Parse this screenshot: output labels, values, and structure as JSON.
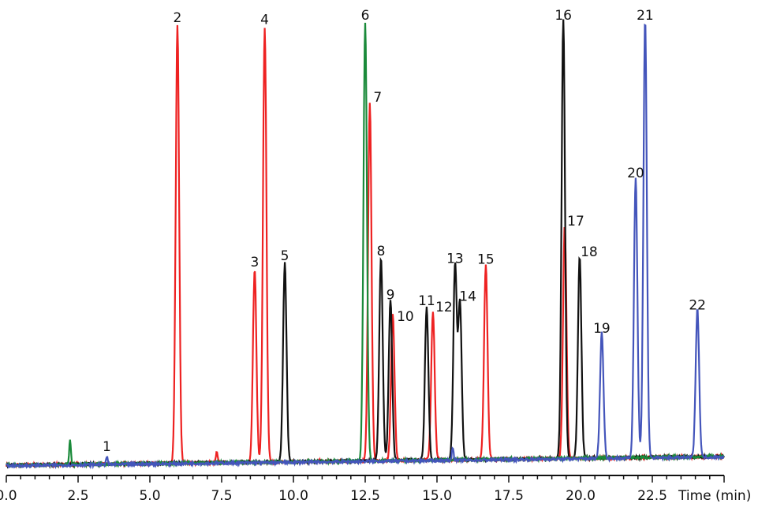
{
  "chart_data": {
    "type": "line",
    "title": "",
    "xlabel": "Time (min)",
    "ylabel": "",
    "xlim": [
      0,
      25
    ],
    "ylim": [
      0,
      100
    ],
    "x_ticks": [
      "0.0",
      "2.5",
      "5.0",
      "7.5",
      "10.0",
      "12.5",
      "15.0",
      "17.5",
      "20.0",
      "22.5"
    ],
    "x_minor_tick_step": 0.5,
    "grid": false,
    "colors": {
      "red": "#ee2222",
      "black": "#111111",
      "green": "#1a8a3a",
      "blue": "#4455bb"
    },
    "peaks": [
      {
        "label": "1",
        "time": 3.5,
        "height": 1.8,
        "color": "blue"
      },
      {
        "label": "2",
        "time": 5.96,
        "height": 99.5,
        "color": "red"
      },
      {
        "label": "3",
        "time": 8.65,
        "height": 43.8,
        "color": "red"
      },
      {
        "label": "4",
        "time": 9.0,
        "height": 99,
        "color": "red"
      },
      {
        "label": "5",
        "time": 9.7,
        "height": 45.2,
        "color": "black"
      },
      {
        "label": "6",
        "time": 12.5,
        "height": 100,
        "color": "green"
      },
      {
        "label": "7",
        "time": 12.66,
        "height": 81.3,
        "color": "red"
      },
      {
        "label": "8",
        "time": 13.05,
        "height": 46.3,
        "color": "black"
      },
      {
        "label": "9",
        "time": 13.38,
        "height": 36.4,
        "color": "black"
      },
      {
        "label": "10",
        "time": 13.46,
        "height": 33.6,
        "color": "red"
      },
      {
        "label": "11",
        "time": 14.64,
        "height": 35,
        "color": "black"
      },
      {
        "label": "12",
        "time": 14.86,
        "height": 33.6,
        "color": "red"
      },
      {
        "label": "13",
        "time": 15.63,
        "height": 44.6,
        "color": "black"
      },
      {
        "label": "14",
        "time": 15.8,
        "height": 36,
        "color": "black"
      },
      {
        "label": "15",
        "time": 16.7,
        "height": 44.4,
        "color": "red"
      },
      {
        "label": "16",
        "time": 19.4,
        "height": 100,
        "color": "black"
      },
      {
        "label": "17",
        "time": 19.45,
        "height": 53.1,
        "color": "red"
      },
      {
        "label": "18",
        "time": 19.97,
        "height": 46.1,
        "color": "black"
      },
      {
        "label": "19",
        "time": 20.74,
        "height": 28.7,
        "color": "blue"
      },
      {
        "label": "20",
        "time": 21.92,
        "height": 64.1,
        "color": "blue"
      },
      {
        "label": "21",
        "time": 22.25,
        "height": 100,
        "color": "blue"
      },
      {
        "label": "22",
        "time": 24.07,
        "height": 34,
        "color": "blue"
      }
    ],
    "minor_peaks": [
      {
        "time": 2.22,
        "height": 5.4,
        "color": "green"
      },
      {
        "time": 7.33,
        "height": 2.3,
        "color": "red"
      },
      {
        "time": 15.55,
        "height": 3,
        "color": "blue"
      }
    ]
  }
}
